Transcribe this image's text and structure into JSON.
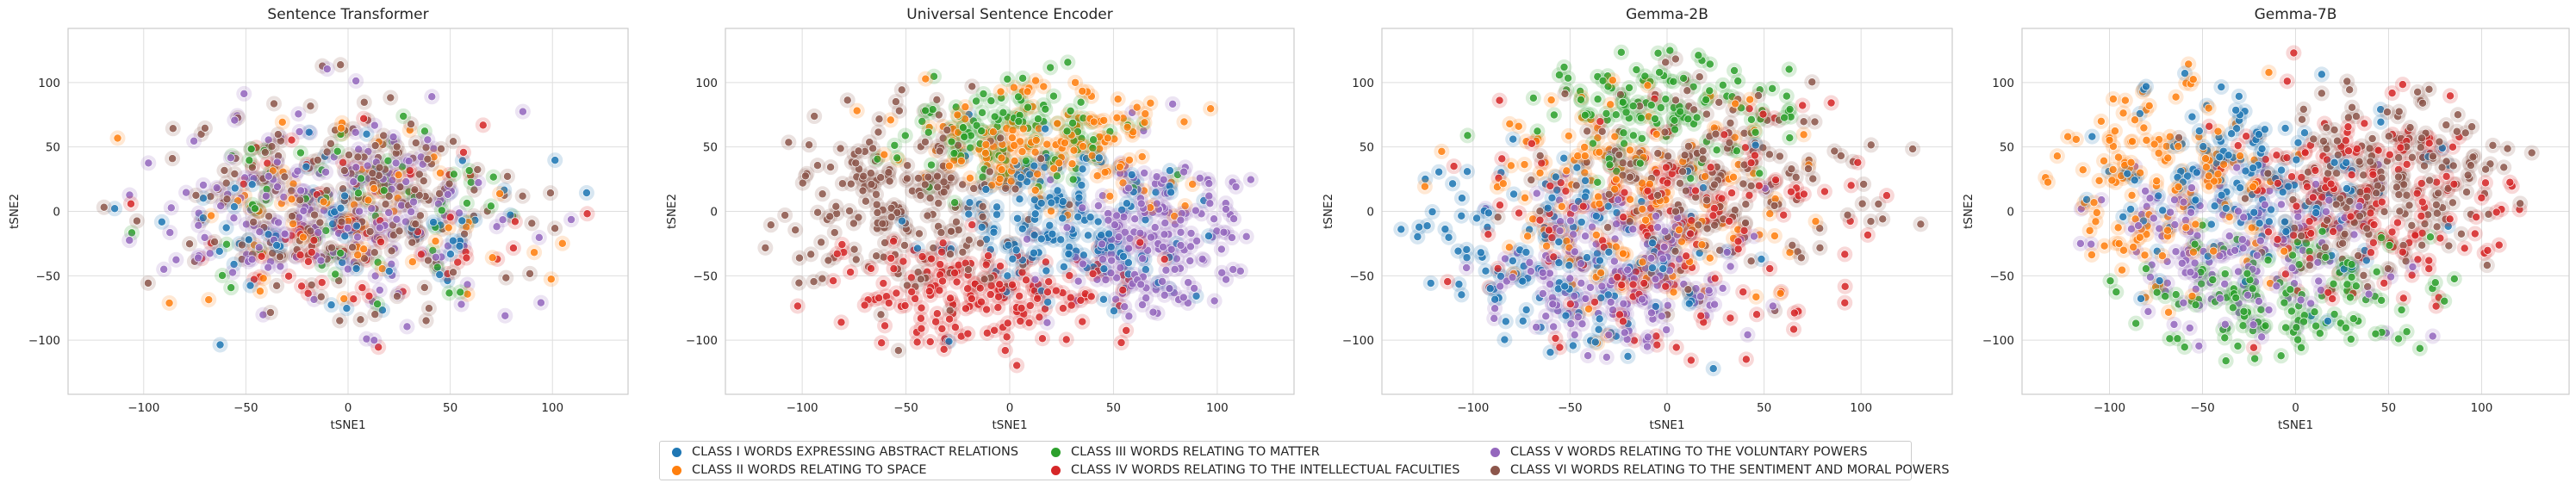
{
  "colors": {
    "class_1": "#1f77b4",
    "class_2": "#ff7f0e",
    "class_3": "#2ca02c",
    "class_4": "#d62728",
    "class_5": "#9467bd",
    "class_6": "#8c564b"
  },
  "legend": [
    {
      "label": "CLASS I WORDS EXPRESSING ABSTRACT RELATIONS",
      "color": "#1f77b4"
    },
    {
      "label": "CLASS II WORDS RELATING TO SPACE",
      "color": "#ff7f0e"
    },
    {
      "label": "CLASS III WORDS RELATING TO MATTER",
      "color": "#2ca02c"
    },
    {
      "label": "CLASS IV WORDS RELATING TO THE INTELLECTUAL FACULTIES",
      "color": "#d62728"
    },
    {
      "label": "CLASS V WORDS RELATING TO THE VOLUNTARY POWERS",
      "color": "#9467bd"
    },
    {
      "label": "CLASS VI WORDS RELATING TO THE SENTIMENT AND MORAL POWERS",
      "color": "#8c564b"
    }
  ],
  "chart_data": [
    {
      "type": "scatter",
      "title": "Sentence Transformer",
      "xlabel": "tSNE1",
      "ylabel": "tSNE2",
      "xlim": [
        -137,
        137
      ],
      "ylim": [
        -142,
        142
      ],
      "xticks": [
        -100,
        -50,
        0,
        50,
        100
      ],
      "yticks": [
        -100,
        -50,
        0,
        50,
        100
      ],
      "xtick_labels": [
        "−100",
        "−50",
        "0",
        "50",
        "100"
      ],
      "ytick_labels": [
        "−100",
        "−50",
        "0",
        "50",
        "100"
      ],
      "grid": true,
      "cloud": {
        "center": [
          0,
          0
        ],
        "radius": [
          128,
          126
        ]
      },
      "series": [
        {
          "name": "CLASS I WORDS EXPRESSING ABSTRACT RELATIONS",
          "color": "#1f77b4",
          "center": [
            -10,
            -5
          ],
          "spread": [
            70,
            60
          ],
          "count": 60
        },
        {
          "name": "CLASS II WORDS RELATING TO SPACE",
          "color": "#ff7f0e",
          "center": [
            5,
            5
          ],
          "spread": [
            70,
            65
          ],
          "count": 60
        },
        {
          "name": "CLASS III WORDS RELATING TO MATTER",
          "color": "#2ca02c",
          "center": [
            0,
            10
          ],
          "spread": [
            70,
            65
          ],
          "count": 60
        },
        {
          "name": "CLASS IV WORDS RELATING TO THE INTELLECTUAL FACULTIES",
          "color": "#d62728",
          "center": [
            0,
            -10
          ],
          "spread": [
            70,
            65
          ],
          "count": 70
        },
        {
          "name": "CLASS V WORDS RELATING TO THE VOLUNTARY POWERS",
          "color": "#9467bd",
          "center": [
            -5,
            -5
          ],
          "spread": [
            75,
            70
          ],
          "count": 190
        },
        {
          "name": "CLASS VI WORDS RELATING TO THE SENTIMENT AND MORAL POWERS",
          "color": "#8c564b",
          "center": [
            0,
            0
          ],
          "spread": [
            75,
            70
          ],
          "count": 200
        }
      ]
    },
    {
      "type": "scatter",
      "title": "Universal Sentence Encoder",
      "xlabel": "tSNE1",
      "ylabel": "tSNE2",
      "xlim": [
        -137,
        137
      ],
      "ylim": [
        -142,
        142
      ],
      "xticks": [
        -100,
        -50,
        0,
        50,
        100
      ],
      "yticks": [
        -100,
        -50,
        0,
        50,
        100
      ],
      "xtick_labels": [
        "−100",
        "−50",
        "0",
        "50",
        "100"
      ],
      "ytick_labels": [
        "−100",
        "−50",
        "0",
        "50",
        "100"
      ],
      "grid": true,
      "cloud": {
        "center": [
          0,
          0
        ],
        "radius": [
          127,
          124
        ]
      },
      "series": [
        {
          "name": "CLASS I WORDS EXPRESSING ABSTRACT RELATIONS",
          "color": "#1f77b4",
          "center": [
            25,
            -10
          ],
          "spread": [
            55,
            55
          ],
          "count": 150
        },
        {
          "name": "CLASS II WORDS RELATING TO SPACE",
          "color": "#ff7f0e",
          "center": [
            15,
            55
          ],
          "spread": [
            60,
            45
          ],
          "count": 140
        },
        {
          "name": "CLASS III WORDS RELATING TO MATTER",
          "color": "#2ca02c",
          "center": [
            0,
            60
          ],
          "spread": [
            55,
            40
          ],
          "count": 110
        },
        {
          "name": "CLASS IV WORDS RELATING TO THE INTELLECTUAL FACULTIES",
          "color": "#d62728",
          "center": [
            -15,
            -65
          ],
          "spread": [
            65,
            40
          ],
          "count": 160
        },
        {
          "name": "CLASS V WORDS RELATING TO THE VOLUNTARY POWERS",
          "color": "#9467bd",
          "center": [
            70,
            -20
          ],
          "spread": [
            45,
            70
          ],
          "count": 170
        },
        {
          "name": "CLASS VI WORDS RELATING TO THE SENTIMENT AND MORAL POWERS",
          "color": "#8c564b",
          "center": [
            -55,
            5
          ],
          "spread": [
            55,
            70
          ],
          "count": 190
        }
      ]
    },
    {
      "type": "scatter",
      "title": "Gemma-2B",
      "xlabel": "tSNE1",
      "ylabel": "tSNE2",
      "xlim": [
        -147,
        147
      ],
      "ylim": [
        -142,
        142
      ],
      "xticks": [
        -100,
        -50,
        0,
        50,
        100
      ],
      "yticks": [
        -100,
        -50,
        0,
        50,
        100
      ],
      "xtick_labels": [
        "−100",
        "−50",
        "0",
        "50",
        "100"
      ],
      "ytick_labels": [
        "−100",
        "−50",
        "0",
        "50",
        "100"
      ],
      "grid": true,
      "cloud": {
        "center": [
          0,
          0
        ],
        "radius": [
          138,
          126
        ]
      },
      "series": [
        {
          "name": "CLASS I WORDS EXPRESSING ABSTRACT RELATIONS",
          "color": "#1f77b4",
          "center": [
            -60,
            -40
          ],
          "spread": [
            75,
            75
          ],
          "count": 140
        },
        {
          "name": "CLASS II WORDS RELATING TO SPACE",
          "color": "#ff7f0e",
          "center": [
            -15,
            10
          ],
          "spread": [
            80,
            80
          ],
          "count": 150
        },
        {
          "name": "CLASS III WORDS RELATING TO MATTER",
          "color": "#2ca02c",
          "center": [
            -10,
            80
          ],
          "spread": [
            65,
            45
          ],
          "count": 110
        },
        {
          "name": "CLASS IV WORDS RELATING TO THE INTELLECTUAL FACULTIES",
          "color": "#d62728",
          "center": [
            0,
            -10
          ],
          "spread": [
            90,
            85
          ],
          "count": 150
        },
        {
          "name": "CLASS V WORDS RELATING TO THE VOLUNTARY POWERS",
          "color": "#9467bd",
          "center": [
            -25,
            -45
          ],
          "spread": [
            60,
            60
          ],
          "count": 160
        },
        {
          "name": "CLASS VI WORDS RELATING TO THE SENTIMENT AND MORAL POWERS",
          "color": "#8c564b",
          "center": [
            20,
            25
          ],
          "spread": [
            70,
            75
          ],
          "count": 170
        }
      ]
    },
    {
      "type": "scatter",
      "title": "Gemma-7B",
      "xlabel": "tSNE1",
      "ylabel": "tSNE2",
      "xlim": [
        -147,
        147
      ],
      "ylim": [
        -142,
        142
      ],
      "xticks": [
        -100,
        -50,
        0,
        50,
        100
      ],
      "yticks": [
        -100,
        -50,
        0,
        50,
        100
      ],
      "xtick_labels": [
        "−100",
        "−50",
        "0",
        "50",
        "100"
      ],
      "ytick_labels": [
        "−100",
        "−50",
        "0",
        "50",
        "100"
      ],
      "grid": true,
      "cloud": {
        "center": [
          0,
          0
        ],
        "radius": [
          138,
          126
        ]
      },
      "series": [
        {
          "name": "CLASS I WORDS EXPRESSING ABSTRACT RELATIONS",
          "color": "#1f77b4",
          "center": [
            -20,
            20
          ],
          "spread": [
            70,
            70
          ],
          "count": 140
        },
        {
          "name": "CLASS II WORDS RELATING TO SPACE",
          "color": "#ff7f0e",
          "center": [
            -75,
            30
          ],
          "spread": [
            60,
            80
          ],
          "count": 130
        },
        {
          "name": "CLASS III WORDS RELATING TO MATTER",
          "color": "#2ca02c",
          "center": [
            -10,
            -70
          ],
          "spread": [
            85,
            45
          ],
          "count": 120
        },
        {
          "name": "CLASS IV WORDS RELATING TO THE INTELLECTUAL FACULTIES",
          "color": "#d62728",
          "center": [
            35,
            10
          ],
          "spread": [
            70,
            75
          ],
          "count": 150
        },
        {
          "name": "CLASS V WORDS RELATING TO THE VOLUNTARY POWERS",
          "color": "#9467bd",
          "center": [
            -35,
            -25
          ],
          "spread": [
            70,
            60
          ],
          "count": 150
        },
        {
          "name": "CLASS VI WORDS RELATING TO THE SENTIMENT AND MORAL POWERS",
          "color": "#8c564b",
          "center": [
            50,
            20
          ],
          "spread": [
            55,
            70
          ],
          "count": 180
        }
      ]
    }
  ]
}
